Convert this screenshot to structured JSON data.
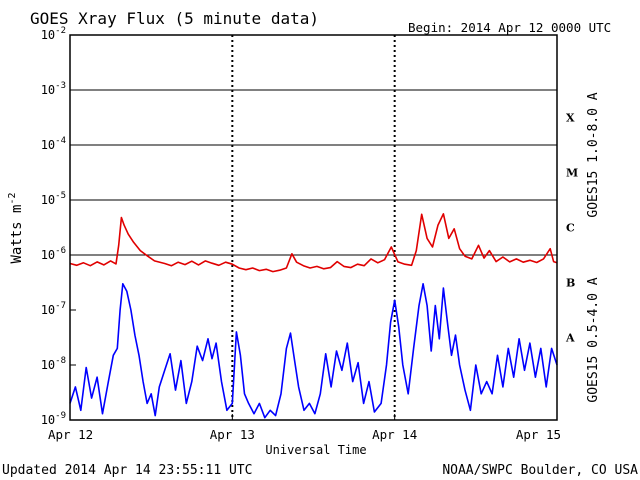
{
  "chart_data": {
    "type": "line",
    "title": "GOES Xray Flux (5 minute data)",
    "begin": "Begin:  2014 Apr 12 0000 UTC",
    "xlabel": "Universal Time",
    "ylabel": "Watts m",
    "ylabel_sup": "-2",
    "y_scale": "log",
    "ylim": [
      1e-09,
      0.01
    ],
    "xlim_hours": [
      0,
      72
    ],
    "x_ticks": [
      {
        "hour": 0,
        "label": "Apr 12"
      },
      {
        "hour": 24,
        "label": "Apr 13"
      },
      {
        "hour": 48,
        "label": "Apr 14"
      },
      {
        "hour": 72,
        "label": "Apr 15"
      }
    ],
    "y_ticks": [
      {
        "exp": -2,
        "base": "10",
        "sup": "-2"
      },
      {
        "exp": -3,
        "base": "10",
        "sup": "-3"
      },
      {
        "exp": -4,
        "base": "10",
        "sup": "-4"
      },
      {
        "exp": -5,
        "base": "10",
        "sup": "-5"
      },
      {
        "exp": -6,
        "base": "10",
        "sup": "-6"
      },
      {
        "exp": -7,
        "base": "10",
        "sup": "-7"
      },
      {
        "exp": -8,
        "base": "10",
        "sup": "-8"
      },
      {
        "exp": -9,
        "base": "10",
        "sup": "-9"
      }
    ],
    "flare_classes": [
      {
        "label": "X",
        "exp": -3.5
      },
      {
        "label": "M",
        "exp": -4.5
      },
      {
        "label": "C",
        "exp": -5.5
      },
      {
        "label": "B",
        "exp": -6.5
      },
      {
        "label": "A",
        "exp": -7.5
      }
    ],
    "grid": "horizontal lines at each decade from 1e-6 to 1e-3, dotted vertical lines at each day",
    "series": [
      {
        "name": "GOES15 1.0-8.0 A",
        "color": "#e00000",
        "points": [
          [
            0,
            7e-07
          ],
          [
            1,
            6.5e-07
          ],
          [
            2,
            7.2e-07
          ],
          [
            3,
            6.4e-07
          ],
          [
            4,
            7.5e-07
          ],
          [
            5,
            6.6e-07
          ],
          [
            6,
            7.8e-07
          ],
          [
            6.8,
            6.9e-07
          ],
          [
            7.2,
            1.5e-06
          ],
          [
            7.6,
            4.8e-06
          ],
          [
            8.0,
            3.5e-06
          ],
          [
            8.6,
            2.4e-06
          ],
          [
            9.4,
            1.7e-06
          ],
          [
            10.4,
            1.2e-06
          ],
          [
            11.5,
            9.5e-07
          ],
          [
            12.5,
            7.8e-07
          ],
          [
            14,
            7e-07
          ],
          [
            15,
            6.4e-07
          ],
          [
            16,
            7.4e-07
          ],
          [
            17,
            6.7e-07
          ],
          [
            18,
            7.7e-07
          ],
          [
            19,
            6.6e-07
          ],
          [
            20,
            7.8e-07
          ],
          [
            21,
            7.1e-07
          ],
          [
            22,
            6.5e-07
          ],
          [
            23,
            7.4e-07
          ],
          [
            24,
            6.8e-07
          ],
          [
            25,
            5.8e-07
          ],
          [
            26,
            5.4e-07
          ],
          [
            27,
            5.8e-07
          ],
          [
            28,
            5.2e-07
          ],
          [
            29,
            5.5e-07
          ],
          [
            30,
            5e-07
          ],
          [
            31,
            5.3e-07
          ],
          [
            32,
            5.8e-07
          ],
          [
            32.8,
            1.05e-06
          ],
          [
            33.5,
            7.4e-07
          ],
          [
            34.5,
            6.4e-07
          ],
          [
            35.5,
            5.8e-07
          ],
          [
            36.5,
            6.2e-07
          ],
          [
            37.5,
            5.6e-07
          ],
          [
            38.5,
            5.9e-07
          ],
          [
            39.5,
            7.6e-07
          ],
          [
            40.5,
            6.2e-07
          ],
          [
            41.5,
            5.9e-07
          ],
          [
            42.5,
            6.8e-07
          ],
          [
            43.5,
            6.4e-07
          ],
          [
            44.5,
            8.5e-07
          ],
          [
            45.5,
            7.2e-07
          ],
          [
            46.5,
            8.2e-07
          ],
          [
            47.5,
            1.4e-06
          ],
          [
            48.5,
            7.5e-07
          ],
          [
            49.5,
            6.8e-07
          ],
          [
            50.5,
            6.5e-07
          ],
          [
            51.2,
            1.2e-06
          ],
          [
            52,
            5.5e-06
          ],
          [
            52.8,
            2e-06
          ],
          [
            53.6,
            1.4e-06
          ],
          [
            54.4,
            3.5e-06
          ],
          [
            55.2,
            5.6e-06
          ],
          [
            56,
            2e-06
          ],
          [
            56.8,
            3e-06
          ],
          [
            57.6,
            1.3e-06
          ],
          [
            58.4,
            9.5e-07
          ],
          [
            59.4,
            8.5e-07
          ],
          [
            60.4,
            1.5e-06
          ],
          [
            61.2,
            8.8e-07
          ],
          [
            62,
            1.2e-06
          ],
          [
            63,
            7.6e-07
          ],
          [
            64,
            9.2e-07
          ],
          [
            65,
            7.5e-07
          ],
          [
            66,
            8.5e-07
          ],
          [
            67,
            7.4e-07
          ],
          [
            68,
            8e-07
          ],
          [
            69,
            7.3e-07
          ],
          [
            70,
            8.5e-07
          ],
          [
            71,
            1.3e-06
          ],
          [
            71.5,
            7.6e-07
          ],
          [
            72,
            7.2e-07
          ]
        ]
      },
      {
        "name": "GOES15 0.5-4.0 A",
        "color": "#0000ff",
        "points": [
          [
            0,
            2e-09
          ],
          [
            0.8,
            4e-09
          ],
          [
            1.6,
            1.5e-09
          ],
          [
            2.4,
            9e-09
          ],
          [
            3.2,
            2.5e-09
          ],
          [
            4,
            6e-09
          ],
          [
            4.8,
            1.3e-09
          ],
          [
            5.6,
            4.5e-09
          ],
          [
            6.4,
            1.5e-08
          ],
          [
            7,
            2e-08
          ],
          [
            7.4,
            1e-07
          ],
          [
            7.8,
            3e-07
          ],
          [
            8.4,
            2.2e-07
          ],
          [
            9,
            1e-07
          ],
          [
            9.6,
            3.5e-08
          ],
          [
            10.2,
            1.5e-08
          ],
          [
            10.8,
            5e-09
          ],
          [
            11.4,
            2e-09
          ],
          [
            12,
            3e-09
          ],
          [
            12.6,
            1.2e-09
          ],
          [
            13.2,
            4e-09
          ],
          [
            14,
            8e-09
          ],
          [
            14.8,
            1.6e-08
          ],
          [
            15.6,
            3.5e-09
          ],
          [
            16.4,
            1.2e-08
          ],
          [
            17.2,
            2e-09
          ],
          [
            18,
            5e-09
          ],
          [
            18.8,
            2.2e-08
          ],
          [
            19.6,
            1.2e-08
          ],
          [
            20.4,
            3e-08
          ],
          [
            21,
            1.3e-08
          ],
          [
            21.6,
            2.5e-08
          ],
          [
            22.4,
            5e-09
          ],
          [
            23.2,
            1.5e-09
          ],
          [
            24,
            2e-09
          ],
          [
            24.6,
            4e-08
          ],
          [
            25.2,
            1.5e-08
          ],
          [
            25.8,
            3e-09
          ],
          [
            26.4,
            2e-09
          ],
          [
            27.2,
            1.3e-09
          ],
          [
            28,
            2e-09
          ],
          [
            28.8,
            1.1e-09
          ],
          [
            29.6,
            1.5e-09
          ],
          [
            30.4,
            1.2e-09
          ],
          [
            31.2,
            3e-09
          ],
          [
            32,
            2e-08
          ],
          [
            32.6,
            3.8e-08
          ],
          [
            33.2,
            1.2e-08
          ],
          [
            33.8,
            4e-09
          ],
          [
            34.6,
            1.5e-09
          ],
          [
            35.4,
            2e-09
          ],
          [
            36.2,
            1.3e-09
          ],
          [
            37,
            3e-09
          ],
          [
            37.8,
            1.6e-08
          ],
          [
            38.6,
            4e-09
          ],
          [
            39.4,
            1.8e-08
          ],
          [
            40.2,
            8e-09
          ],
          [
            41,
            2.5e-08
          ],
          [
            41.8,
            5e-09
          ],
          [
            42.6,
            1.1e-08
          ],
          [
            43.4,
            2e-09
          ],
          [
            44.2,
            5e-09
          ],
          [
            45,
            1.4e-09
          ],
          [
            46,
            2e-09
          ],
          [
            46.8,
            1e-08
          ],
          [
            47.4,
            6e-08
          ],
          [
            48,
            1.5e-07
          ],
          [
            48.6,
            5e-08
          ],
          [
            49.2,
            1e-08
          ],
          [
            50,
            3e-09
          ],
          [
            50.8,
            2e-08
          ],
          [
            51.6,
            1.2e-07
          ],
          [
            52.2,
            3e-07
          ],
          [
            52.8,
            1.2e-07
          ],
          [
            53.4,
            1.8e-08
          ],
          [
            54,
            1.2e-07
          ],
          [
            54.6,
            3e-08
          ],
          [
            55.2,
            2.5e-07
          ],
          [
            55.8,
            6e-08
          ],
          [
            56.4,
            1.5e-08
          ],
          [
            57,
            3.5e-08
          ],
          [
            57.6,
            1e-08
          ],
          [
            58.4,
            3.5e-09
          ],
          [
            59.2,
            1.5e-09
          ],
          [
            60,
            1e-08
          ],
          [
            60.8,
            3e-09
          ],
          [
            61.6,
            5e-09
          ],
          [
            62.4,
            3e-09
          ],
          [
            63.2,
            1.5e-08
          ],
          [
            64,
            4e-09
          ],
          [
            64.8,
            2e-08
          ],
          [
            65.6,
            6e-09
          ],
          [
            66.4,
            3e-08
          ],
          [
            67.2,
            8e-09
          ],
          [
            68,
            2.5e-08
          ],
          [
            68.8,
            6e-09
          ],
          [
            69.6,
            2e-08
          ],
          [
            70.4,
            4e-09
          ],
          [
            71.2,
            2e-08
          ],
          [
            72,
            1e-08
          ]
        ]
      }
    ],
    "footer_left": "Updated 2014 Apr 14 23:55:11 UTC",
    "footer_right": "NOAA/SWPC Boulder, CO USA"
  }
}
